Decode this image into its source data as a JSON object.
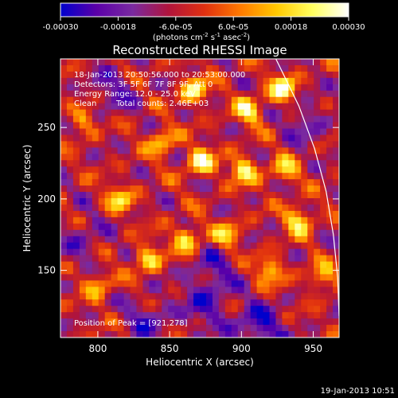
{
  "chart_data": {
    "type": "heatmap",
    "title": "Reconstructed RHESSI Image",
    "xlabel": "Heliocentric X (arcsec)",
    "ylabel": "Heliocentric Y (arcsec)",
    "xlim": [
      774,
      968
    ],
    "ylim": [
      103,
      298
    ],
    "x_ticks": [
      800,
      850,
      900,
      950
    ],
    "y_ticks": [
      150,
      200,
      250
    ],
    "colorbar": {
      "min": -0.0003,
      "max": 0.0003,
      "tick_labels": [
        "-0.00030",
        "-0.00018",
        "-6.0e-05",
        "6.0e-05",
        "0.00018",
        "0.00030"
      ],
      "unit_label_parts": [
        "(photons cm",
        "-2",
        " s",
        "-1",
        " asec",
        "-2",
        ")"
      ],
      "colormap": [
        "#0000cc",
        "#5b00a8",
        "#7a2aa0",
        "#b0143c",
        "#e03010",
        "#ff7a00",
        "#ffc800",
        "#ffff60",
        "#ffffff"
      ]
    },
    "annotations": {
      "time_range": "18-Jan-2013 20:50:56.000 to 20:53:00.000",
      "detectors": "Detectors: 3F 5F 6F 7F 8F 9F, Att 0",
      "energy_range": "Energy Range: 12.0 - 25.0 keV",
      "algorithm": "Clean",
      "total_counts": "Total counts: 2.46E+03",
      "peak_position": "Position of Peak = [921,278]"
    },
    "peak": {
      "x": 921,
      "y": 278
    },
    "bright_features": [
      {
        "x": 929,
        "y": 277,
        "level": 1.0
      },
      {
        "x": 872,
        "y": 226,
        "level": 0.95
      },
      {
        "x": 867,
        "y": 276,
        "level": 0.9
      },
      {
        "x": 902,
        "y": 220,
        "level": 0.85
      },
      {
        "x": 940,
        "y": 185,
        "level": 0.85
      },
      {
        "x": 905,
        "y": 262,
        "level": 0.8
      },
      {
        "x": 862,
        "y": 172,
        "level": 0.8
      },
      {
        "x": 835,
        "y": 158,
        "level": 0.75
      },
      {
        "x": 920,
        "y": 150,
        "level": 0.7
      },
      {
        "x": 815,
        "y": 200,
        "level": 0.7
      },
      {
        "x": 890,
        "y": 175,
        "level": 0.65
      },
      {
        "x": 845,
        "y": 240,
        "level": 0.7
      },
      {
        "x": 800,
        "y": 140,
        "level": 0.6
      },
      {
        "x": 930,
        "y": 220,
        "level": 0.65
      },
      {
        "x": 956,
        "y": 145,
        "level": 0.6
      },
      {
        "x": 790,
        "y": 255,
        "level": 0.55
      }
    ],
    "dark_features": [
      {
        "x": 912,
        "y": 110,
        "level": 1.0
      },
      {
        "x": 875,
        "y": 125,
        "level": 0.7
      },
      {
        "x": 835,
        "y": 115,
        "level": 0.6
      },
      {
        "x": 880,
        "y": 150,
        "level": 0.6
      },
      {
        "x": 790,
        "y": 172,
        "level": 0.5
      },
      {
        "x": 945,
        "y": 255,
        "level": 0.55
      },
      {
        "x": 810,
        "y": 275,
        "level": 0.55
      }
    ],
    "limb_contour": [
      [
        924,
        298
      ],
      [
        940,
        265
      ],
      [
        951,
        235
      ],
      [
        959,
        205
      ],
      [
        964,
        175
      ],
      [
        967,
        145
      ],
      [
        968,
        118
      ]
    ],
    "grid": false
  },
  "footer": {
    "timestamp": "19-Jan-2013 10:51"
  }
}
